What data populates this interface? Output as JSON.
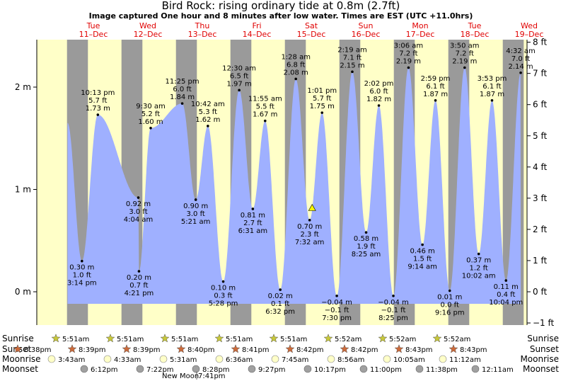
{
  "title": "Bird Rock: rising  ordinary tide at 0.8m (2.7ft)",
  "subtitle": "Image captured One hour and 8 minutes after low water. Times are EST (UTC +11.0hrs)",
  "days": [
    {
      "dow": "Tue",
      "date": "11–Dec"
    },
    {
      "dow": "Wed",
      "date": "12–Dec"
    },
    {
      "dow": "Thu",
      "date": "13–Dec"
    },
    {
      "dow": "Fri",
      "date": "14–Dec"
    },
    {
      "dow": "Sat",
      "date": "15–Dec"
    },
    {
      "dow": "Sun",
      "date": "16–Dec"
    },
    {
      "dow": "Mon",
      "date": "17–Dec"
    },
    {
      "dow": "Tue",
      "date": "18–Dec"
    },
    {
      "dow": "Wed",
      "date": "19–Dec"
    }
  ],
  "colors": {
    "water": "#9fb0ff",
    "day": "#ffffc8",
    "night": "#9a9a9a",
    "nightEdge": "#777777",
    "daylabel": "#e00000",
    "sunrise": "#c8c83a",
    "sunset": "#cc6a3a",
    "moonrise": "#ffffc8",
    "moonset": "#a0a0a0",
    "marker": "#f5f500"
  },
  "chart_data": {
    "type": "area",
    "ylabel_left": "m",
    "ylabel_right": "ft",
    "ylim_m": [
      -0.45,
      2.5
    ],
    "yticks_m": [
      {
        "value": 0,
        "label": "0 m"
      },
      {
        "value": 1,
        "label": "1 m"
      },
      {
        "value": 2,
        "label": "2 m"
      }
    ],
    "yticks_ft": [
      {
        "value": -1,
        "label": "−1 ft"
      },
      {
        "value": 0,
        "label": "0 ft"
      },
      {
        "value": 1,
        "label": "1 ft"
      },
      {
        "value": 2,
        "label": "2 ft"
      },
      {
        "value": 3,
        "label": "3 ft"
      },
      {
        "value": 4,
        "label": "4 ft"
      },
      {
        "value": 5,
        "label": "5 ft"
      },
      {
        "value": 6,
        "label": "6 ft"
      },
      {
        "value": 7,
        "label": "7 ft"
      },
      {
        "value": 8,
        "label": "8 ft"
      }
    ],
    "xlim_days": [
      10.3,
      19.2
    ],
    "start_level_m": 1.65,
    "extremes": [
      {
        "t": 11.134,
        "m": 0.3,
        "lines": [
          "0.30 m",
          "1.0 ft",
          "3:14 pm"
        ]
      },
      {
        "t": 11.426,
        "m": 1.73,
        "lines": [
          "10:13 pm",
          "5.7 ft",
          "1.73 m"
        ]
      },
      {
        "t": 12.169,
        "m": 0.92,
        "lines": [
          "0.92 m",
          "3.0 ft",
          "4:04 am"
        ]
      },
      {
        "t": 12.396,
        "m": 1.6,
        "lines": [
          "9:30 am",
          "5.2 ft",
          "1.60 m"
        ]
      },
      {
        "t": 12.181,
        "m": 0.2,
        "lines": [
          "0.20 m",
          "0.7 ft",
          "4:21 pm"
        ],
        "tshift": 0.99
      },
      {
        "t": 12.975,
        "m": 1.84,
        "lines": [
          "11:25 pm",
          "6.0 ft",
          "1.84 m"
        ],
        "tshift": -0.5
      },
      {
        "t": 13.223,
        "m": 0.9,
        "lines": [
          "0.90 m",
          "3.0 ft",
          "5:21 am"
        ]
      },
      {
        "t": 13.446,
        "m": 1.62,
        "lines": [
          "10:42 am",
          "5.3 ft",
          "1.62 m"
        ]
      },
      {
        "t": 13.728,
        "m": 0.1,
        "lines": [
          "0.10 m",
          "0.3 ft",
          "5:28 pm"
        ]
      },
      {
        "t": 14.021,
        "m": 1.97,
        "lines": [
          "12:30 am",
          "6.5 ft",
          "1.97 m"
        ]
      },
      {
        "t": 14.271,
        "m": 0.81,
        "lines": [
          "0.81 m",
          "2.7 ft",
          "6:31 am"
        ]
      },
      {
        "t": 14.497,
        "m": 1.67,
        "lines": [
          "11:55 am",
          "5.5 ft",
          "1.67 m"
        ]
      },
      {
        "t": 14.775,
        "m": 0.02,
        "lines": [
          "0.02 m",
          "0.1 ft",
          "6:32 pm"
        ]
      },
      {
        "t": 15.061,
        "m": 2.08,
        "lines": [
          "1:28 am",
          "6.8 ft",
          "2.08 m"
        ]
      },
      {
        "t": 15.314,
        "m": 0.7,
        "lines": [
          "0.70 m",
          "2.3 ft",
          "7:32 am"
        ]
      },
      {
        "t": 15.542,
        "m": 1.75,
        "lines": [
          "1:01 pm",
          "5.7 ft",
          "1.75 m"
        ]
      },
      {
        "t": 15.813,
        "m": -0.04,
        "lines": [
          "−0.04 m",
          "−0.1 ft",
          "7:30 pm"
        ]
      },
      {
        "t": 16.097,
        "m": 2.15,
        "lines": [
          "2:19 am",
          "7.1 ft",
          "2.15 m"
        ]
      },
      {
        "t": 16.351,
        "m": 0.58,
        "lines": [
          "0.58 m",
          "1.9 ft",
          "8:25 am"
        ]
      },
      {
        "t": 16.585,
        "m": 1.82,
        "lines": [
          "2:02 pm",
          "6.0 ft",
          "1.82 m"
        ]
      },
      {
        "t": 16.851,
        "m": -0.04,
        "lines": [
          "−0.04 m",
          "−0.1 ft",
          "8:25 pm"
        ]
      },
      {
        "t": 17.129,
        "m": 2.19,
        "lines": [
          "3:06 am",
          "7.2 ft",
          "2.19 m"
        ]
      },
      {
        "t": 17.385,
        "m": 0.46,
        "lines": [
          "0.46 m",
          "1.5 ft",
          "9:14 am"
        ]
      },
      {
        "t": 17.624,
        "m": 1.87,
        "lines": [
          "2:59 pm",
          "6.1 ft",
          "1.87 m"
        ]
      },
      {
        "t": 17.886,
        "m": 0.01,
        "lines": [
          "0.01 m",
          "0.0 ft",
          "9:16 pm"
        ]
      },
      {
        "t": 18.16,
        "m": 2.19,
        "lines": [
          "3:50 am",
          "7.2 ft",
          "2.19 m"
        ]
      },
      {
        "t": 18.418,
        "m": 0.37,
        "lines": [
          "0.37 m",
          "1.2 ft",
          "10:02 am"
        ]
      },
      {
        "t": 18.662,
        "m": 1.87,
        "lines": [
          "3:53 pm",
          "6.1 ft",
          "1.87 m"
        ]
      },
      {
        "t": 18.919,
        "m": 0.11,
        "lines": [
          "0.11 m",
          "0.4 ft",
          "10:04 pm"
        ]
      },
      {
        "t": 19.189,
        "m": 2.14,
        "lines": [
          "4:32 am",
          "7.0 ft",
          "2.14 m"
        ]
      }
    ],
    "current": {
      "t": 15.36,
      "m": 0.82
    }
  },
  "legend": {
    "rows": [
      "Sunrise",
      "Sunset",
      "Moonrise",
      "Moonset"
    ],
    "sunrise": [
      "5:51am",
      "5:51am",
      "5:51am",
      "5:51am",
      "5:51am",
      "5:52am",
      "5:52am",
      "5:52am"
    ],
    "sunset": [
      "8:38pm",
      "8:39pm",
      "8:39pm",
      "8:40pm",
      "8:41pm",
      "8:42pm",
      "8:42pm",
      "8:43pm",
      "8:43pm"
    ],
    "moonrise": [
      "3:43am",
      "4:33am",
      "5:31am",
      "6:36am",
      "7:45am",
      "8:56am",
      "10:05am",
      "11:12am"
    ],
    "moonset": [
      "6:12pm",
      "7:22pm",
      "8:28pm",
      "9:27pm",
      "10:17pm",
      "11:00pm",
      "11:38pm",
      "12:11am"
    ],
    "new_moon": "New Moon",
    "new_moon_time": "7:41pm"
  }
}
